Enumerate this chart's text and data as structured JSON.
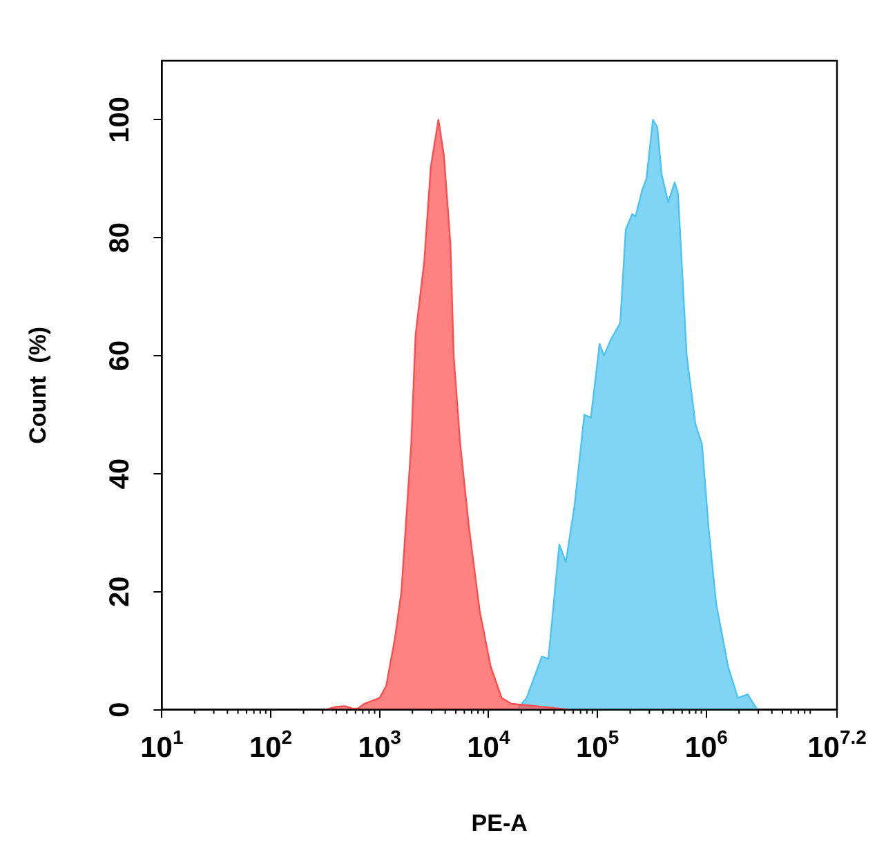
{
  "chart_data": {
    "type": "area",
    "xlabel": "PE-A",
    "ylabel": "Count  (%)",
    "log": "x",
    "xlim": [
      10,
      15848931.92
    ],
    "xticks": [
      {
        "value": 10,
        "label": "10$^{1}$"
      },
      {
        "value": 100,
        "label": "10$^{2}$"
      },
      {
        "value": 1000,
        "label": "10$^{3}$"
      },
      {
        "value": 10000,
        "label": "10$^{4}$"
      },
      {
        "value": 100000,
        "label": "10$^{5}$"
      },
      {
        "value": 1000000,
        "label": "10$^{6}$"
      },
      {
        "value": 15848931.92,
        "label": "10$^{7.2}$"
      }
    ],
    "ylim": [
      0,
      110
    ],
    "yticks": [
      0,
      20,
      40,
      60,
      80,
      100
    ],
    "series": [
      {
        "color": "#ff4d4d",
        "x": [
          316,
          398,
          479,
          562,
          631,
          724,
          1000,
          1148,
          1380,
          1585,
          1950,
          2138,
          2570,
          2951,
          3467,
          3890,
          4467,
          4786,
          5495,
          6607,
          8318,
          10470,
          13180,
          16220,
          31620,
          56230
        ],
        "values": [
          0,
          0.5,
          0.6,
          0.2,
          0.2,
          1,
          2,
          4,
          12,
          20,
          45,
          63.5,
          76,
          92,
          100,
          94,
          79,
          60,
          45,
          31,
          16.6,
          7.3,
          2,
          1,
          0.5,
          0
        ]
      },
      {
        "color": "#4cc3f0",
        "x": [
          18200,
          22390,
          30900,
          35480,
          44670,
          51290,
          61660,
          75860,
          87100,
          104700,
          114800,
          131800,
          162200,
          182000,
          208900,
          223900,
          257000,
          281800,
          323600,
          354800,
          389000,
          446700,
          512900,
          549500,
          660700,
          794300,
          912000,
          1047000,
          1230000,
          1585000,
          1950000,
          2399000,
          2754000,
          2951000
        ],
        "values": [
          0,
          2,
          9,
          8.6,
          28,
          25,
          34.6,
          50,
          49.5,
          62,
          60,
          62.6,
          65.6,
          81.4,
          84,
          83.6,
          88,
          90,
          100,
          98.7,
          90.7,
          86,
          89.4,
          87.5,
          60,
          48.4,
          45,
          31,
          18,
          7.3,
          2,
          2.6,
          0.8,
          0
        ]
      }
    ]
  }
}
